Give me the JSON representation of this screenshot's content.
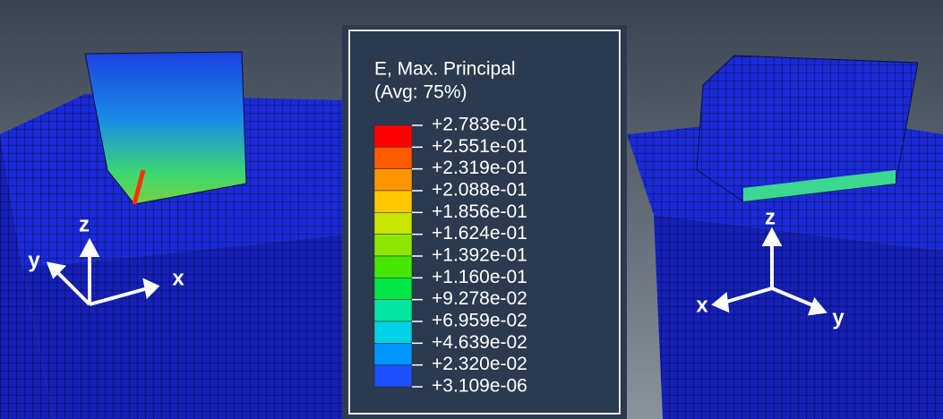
{
  "legend": {
    "title": [
      "E, Max. Principal",
      "(Avg: 75%)"
    ],
    "levels": [
      "+2.783e-01",
      "+2.551e-01",
      "+2.319e-01",
      "+2.088e-01",
      "+1.856e-01",
      "+1.624e-01",
      "+1.392e-01",
      "+1.160e-01",
      "+9.278e-02",
      "+6.959e-02",
      "+4.639e-02",
      "+2.320e-02",
      "+3.109e-06"
    ],
    "colors": [
      "#ff0000",
      "#ff5a00",
      "#ff9600",
      "#ffc800",
      "#c8e600",
      "#8ce600",
      "#46e600",
      "#00e646",
      "#00e6a0",
      "#00d2e6",
      "#0096ff",
      "#1e50ff"
    ]
  },
  "left_triad": {
    "z": "z",
    "y": "y",
    "x": "x"
  },
  "right_triad": {
    "z": "z",
    "x": "x",
    "y": "y"
  }
}
